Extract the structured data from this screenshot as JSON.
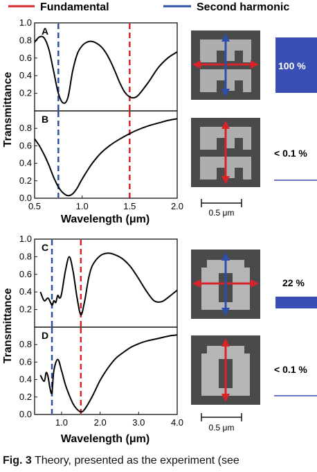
{
  "legend": [
    {
      "label": "Fundamental",
      "color": "#d9232a"
    },
    {
      "label": "Second harmonic",
      "color": "#2d4fa8"
    }
  ],
  "chart_data": [
    {
      "type": "line",
      "panel": "A",
      "ylabel": "Transmittance",
      "xlim": [
        0.5,
        2.0
      ],
      "ylim": [
        0.0,
        1.0
      ],
      "yticks": [
        "0.2",
        "0.4",
        "0.6",
        "0.8",
        "1.0"
      ],
      "vlines": [
        {
          "x": 0.75,
          "series": "Second harmonic"
        },
        {
          "x": 1.5,
          "series": "Fundamental"
        }
      ],
      "series": [
        {
          "x": [
            0.5,
            0.55,
            0.6,
            0.65,
            0.7,
            0.75,
            0.8,
            0.85,
            0.9,
            0.95,
            1.0,
            1.05,
            1.1,
            1.15,
            1.2,
            1.25,
            1.3,
            1.35,
            1.4,
            1.45,
            1.5,
            1.55,
            1.6,
            1.7,
            1.8,
            1.9,
            2.0
          ],
          "y": [
            0.78,
            0.84,
            0.83,
            0.7,
            0.45,
            0.2,
            0.09,
            0.15,
            0.45,
            0.65,
            0.74,
            0.78,
            0.79,
            0.77,
            0.73,
            0.66,
            0.56,
            0.44,
            0.31,
            0.21,
            0.16,
            0.15,
            0.19,
            0.33,
            0.49,
            0.6,
            0.67
          ]
        }
      ]
    },
    {
      "type": "line",
      "panel": "B",
      "ylabel": "Transmittance",
      "xlabel": "Wavelength (μm)",
      "xlim": [
        0.5,
        2.0
      ],
      "ylim": [
        0.0,
        1.0
      ],
      "xticks": [
        "0.5",
        "1.0",
        "1.5",
        "2.0"
      ],
      "yticks": [
        "0.0",
        "0.2",
        "0.4",
        "0.6",
        "0.8"
      ],
      "vlines": [
        {
          "x": 0.75,
          "series": "Second harmonic"
        },
        {
          "x": 1.5,
          "series": "Fundamental"
        }
      ],
      "series": [
        {
          "x": [
            0.5,
            0.55,
            0.6,
            0.65,
            0.7,
            0.75,
            0.8,
            0.85,
            0.9,
            0.95,
            1.0,
            1.1,
            1.2,
            1.3,
            1.4,
            1.5,
            1.6,
            1.7,
            1.8,
            1.9,
            2.0
          ],
          "y": [
            0.68,
            0.6,
            0.5,
            0.38,
            0.24,
            0.13,
            0.06,
            0.03,
            0.05,
            0.12,
            0.22,
            0.39,
            0.52,
            0.61,
            0.68,
            0.74,
            0.79,
            0.83,
            0.86,
            0.89,
            0.91
          ]
        }
      ]
    },
    {
      "type": "line",
      "panel": "C",
      "ylabel": "Transmittance",
      "xlim": [
        0.3,
        4.0
      ],
      "ylim": [
        0.0,
        1.0
      ],
      "yticks": [
        "0.2",
        "0.4",
        "0.6",
        "0.8",
        "1.0"
      ],
      "vlines": [
        {
          "x": 0.75,
          "series": "Second harmonic"
        },
        {
          "x": 1.5,
          "series": "Fundamental"
        }
      ],
      "series": [
        {
          "x": [
            0.45,
            0.55,
            0.65,
            0.75,
            0.8,
            0.85,
            0.9,
            0.95,
            1.0,
            1.1,
            1.2,
            1.3,
            1.4,
            1.5,
            1.6,
            1.7,
            1.8,
            2.0,
            2.2,
            2.4,
            2.6,
            2.8,
            3.0,
            3.2,
            3.4,
            3.6,
            3.8,
            4.0
          ],
          "y": [
            0.4,
            0.3,
            0.33,
            0.25,
            0.3,
            0.28,
            0.36,
            0.33,
            0.38,
            0.64,
            0.8,
            0.63,
            0.34,
            0.14,
            0.3,
            0.55,
            0.7,
            0.81,
            0.84,
            0.82,
            0.77,
            0.68,
            0.55,
            0.41,
            0.3,
            0.29,
            0.35,
            0.42
          ]
        }
      ]
    },
    {
      "type": "line",
      "panel": "D",
      "ylabel": "Transmittance",
      "xlabel": "Wavelength (μm)",
      "xlim": [
        0.3,
        4.0
      ],
      "ylim": [
        0.0,
        1.0
      ],
      "xticks": [
        "1.0",
        "2.0",
        "3.0",
        "4.0"
      ],
      "yticks": [
        "0.0",
        "0.2",
        "0.4",
        "0.6",
        "0.8"
      ],
      "vlines": [
        {
          "x": 0.75,
          "series": "Second harmonic"
        },
        {
          "x": 1.5,
          "series": "Fundamental"
        }
      ],
      "series": [
        {
          "x": [
            0.45,
            0.55,
            0.6,
            0.65,
            0.7,
            0.75,
            0.8,
            0.9,
            1.0,
            1.1,
            1.2,
            1.3,
            1.4,
            1.5,
            1.6,
            1.8,
            2.0,
            2.2,
            2.4,
            2.6,
            2.8,
            3.0,
            3.2,
            3.4,
            3.6,
            3.8,
            4.0
          ],
          "y": [
            0.45,
            0.38,
            0.48,
            0.43,
            0.3,
            0.25,
            0.5,
            0.63,
            0.5,
            0.34,
            0.22,
            0.12,
            0.06,
            0.03,
            0.06,
            0.21,
            0.39,
            0.53,
            0.64,
            0.71,
            0.77,
            0.81,
            0.84,
            0.86,
            0.88,
            0.9,
            0.91
          ]
        }
      ]
    }
  ],
  "panels": [
    {
      "letter": "A",
      "percent": "100 %"
    },
    {
      "letter": "B",
      "percent": "< 0.1 %"
    },
    {
      "letter": "C",
      "percent": "22 %"
    },
    {
      "letter": "D",
      "percent": "< 0.1 %"
    }
  ],
  "scale_bar": "0.5 μm",
  "caption": {
    "label": "Fig. 3",
    "text": " Theory, presented as the experiment (see"
  }
}
